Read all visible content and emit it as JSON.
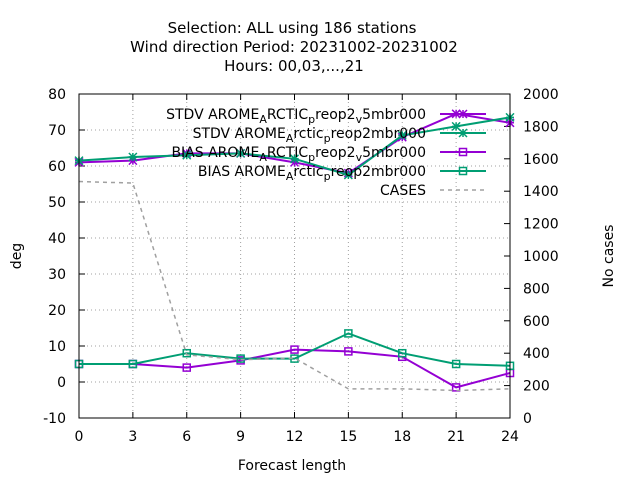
{
  "chart_data": {
    "type": "line",
    "title_lines": [
      "Selection: ALL using   186 stations",
      "Wind direction   Period: 20231002-20231002",
      "Hours:  00,03,...,21"
    ],
    "xlabel": "Forecast length",
    "ylabel": "deg",
    "y2label": "No cases",
    "x": [
      0,
      3,
      6,
      9,
      12,
      15,
      18,
      21,
      24
    ],
    "xlim": [
      0,
      24
    ],
    "ylim": [
      -10,
      80
    ],
    "y2lim": [
      0,
      2000
    ],
    "xticks": [
      "0",
      "3",
      "6",
      "9",
      "12",
      "15",
      "18",
      "21",
      "24"
    ],
    "yticks": [
      "-10",
      "0",
      "10",
      "20",
      "30",
      "40",
      "50",
      "60",
      "70",
      "80"
    ],
    "y2ticks": [
      "0",
      "200",
      "400",
      "600",
      "800",
      "1000",
      "1200",
      "1400",
      "1600",
      "1800",
      "2000"
    ],
    "grid": true,
    "legend_position": "top-right",
    "series": [
      {
        "name": "STDV AROME_ARCTIC_preop2_v_5mbr000",
        "legend": {
          "main1": "STDV AROME",
          "sub1": "A",
          "main2": "RCTIC",
          "sub2": "p",
          "main3": "reop2",
          "sub3": "v",
          "main4": "5mbr000"
        },
        "color": "#9400d3",
        "marker": "star",
        "axis": "y",
        "values": [
          61,
          61.5,
          63.5,
          63.5,
          61,
          58,
          68,
          74.5,
          72
        ]
      },
      {
        "name": "STDV AROME_Arctic_preop2mbr000",
        "legend": {
          "main1": "STDV AROME",
          "sub1": "A",
          "main2": "rctic",
          "sub2": "p",
          "main3": "reop2mbr000"
        },
        "color": "#009e73",
        "marker": "star",
        "axis": "y",
        "values": [
          61.5,
          62.5,
          63,
          63.5,
          62,
          57.5,
          68.5,
          71,
          73.5
        ]
      },
      {
        "name": "BIAS AROME_ARCTIC_preop2_v_5mbr000",
        "legend": {
          "main1": "BIAS AROME",
          "sub1": "A",
          "main2": "RCTIC",
          "sub2": "p",
          "main3": "reop2",
          "sub3": "v",
          "main4": "5mbr000"
        },
        "color": "#9400d3",
        "marker": "square",
        "axis": "y",
        "values": [
          5,
          5,
          4,
          6,
          9,
          8.5,
          7,
          -1.5,
          2.5
        ]
      },
      {
        "name": "BIAS AROME_Arctic_preop2mbr000",
        "legend": {
          "main1": "BIAS AROME",
          "sub1": "A",
          "main2": "rctic",
          "sub2": "p",
          "main3": "reop2mbr000"
        },
        "color": "#009e73",
        "marker": "square",
        "axis": "y",
        "values": [
          5,
          5,
          8,
          6.5,
          6.5,
          13.5,
          8,
          5,
          4.5
        ]
      },
      {
        "name": "CASES",
        "legend": {
          "main1": "CASES"
        },
        "color": "#a0a0a0",
        "marker": "none",
        "dashed": true,
        "axis": "y2",
        "values": [
          1460,
          1450,
          390,
          360,
          370,
          180,
          180,
          170,
          180
        ]
      }
    ]
  }
}
